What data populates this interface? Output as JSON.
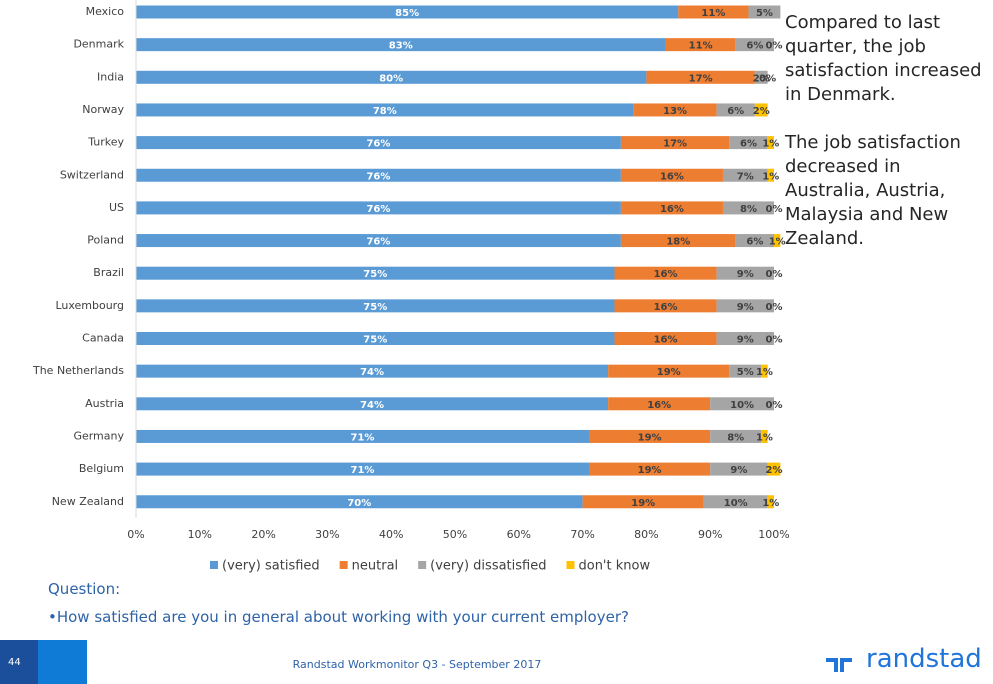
{
  "chart_data": {
    "type": "stacked_bar_horizontal",
    "categories": [
      "Mexico",
      "Denmark",
      "India",
      "Norway",
      "Turkey",
      "Switzerland",
      "US",
      "Poland",
      "Brazil",
      "Luxembourg",
      "Canada",
      "The Netherlands",
      "Austria",
      "Germany",
      "Belgium",
      "New Zealand"
    ],
    "series": [
      {
        "name": "(very) satisfied",
        "color": "#5b9bd5",
        "values": [
          85,
          83,
          80,
          78,
          76,
          76,
          76,
          76,
          75,
          75,
          75,
          74,
          74,
          71,
          71,
          70
        ],
        "value_labels": [
          "85%",
          "83%",
          "80%",
          "78%",
          "76%",
          "76%",
          "76%",
          "76%",
          "75%",
          "75%",
          "75%",
          "74%",
          "74%",
          "71%",
          "71%",
          "70%"
        ]
      },
      {
        "name": "neutral",
        "color": "#ed7d31",
        "values": [
          11,
          11,
          17,
          13,
          17,
          16,
          16,
          18,
          16,
          16,
          16,
          19,
          16,
          19,
          19,
          19
        ],
        "value_labels": [
          "11%",
          "11%",
          "17%",
          "13%",
          "17%",
          "16%",
          "16%",
          "18%",
          "16%",
          "16%",
          "16%",
          "19%",
          "16%",
          "19%",
          "19%",
          "19%"
        ]
      },
      {
        "name": "(very) dissatisfied",
        "color": "#a5a5a5",
        "values": [
          5,
          6,
          2,
          6,
          6,
          7,
          8,
          6,
          9,
          9,
          9,
          5,
          10,
          8,
          9,
          10
        ],
        "value_labels": [
          "5%",
          "6%",
          "2%",
          "6%",
          "6%",
          "7%",
          "8%",
          "6%",
          "9%",
          "9%",
          "9%",
          "5%",
          "10%",
          "8%",
          "9%",
          "10%"
        ]
      },
      {
        "name": "don't know",
        "color": "#ffc000",
        "values": [
          0,
          0,
          0,
          2,
          1,
          1,
          0,
          1,
          0,
          0,
          0,
          1,
          0,
          1,
          2,
          1
        ],
        "value_labels": [
          null,
          "0%",
          "0%",
          "2%",
          "1%",
          "1%",
          "0%",
          "1%",
          "0%",
          "0%",
          "0%",
          "1%",
          "0%",
          "1%",
          "2%",
          "1%"
        ]
      }
    ],
    "xlim": [
      0,
      100
    ],
    "xticks": [
      {
        "value": 0,
        "label": "0%"
      },
      {
        "value": 10,
        "label": "10%"
      },
      {
        "value": 20,
        "label": "20%"
      },
      {
        "value": 30,
        "label": "30%"
      },
      {
        "value": 40,
        "label": "40%"
      },
      {
        "value": 50,
        "label": "50%"
      },
      {
        "value": 60,
        "label": "60%"
      },
      {
        "value": 70,
        "label": "70%"
      },
      {
        "value": 80,
        "label": "80%"
      },
      {
        "value": 90,
        "label": "90%"
      },
      {
        "value": 100,
        "label": "100%"
      }
    ],
    "legend": "bottom",
    "annotations": [
      "Compared to last quarter, the job satisfaction increased in Denmark.",
      "The job satisfaction decreased in Australia, Austria, Malaysia and New Zealand."
    ]
  },
  "question": {
    "heading": "Question:",
    "text": "•How satisfied are you in general about working with your current employer?"
  },
  "footer": {
    "page": "44",
    "source": "Randstad Workmonitor Q3 - September 2017",
    "logo": "randstad"
  }
}
